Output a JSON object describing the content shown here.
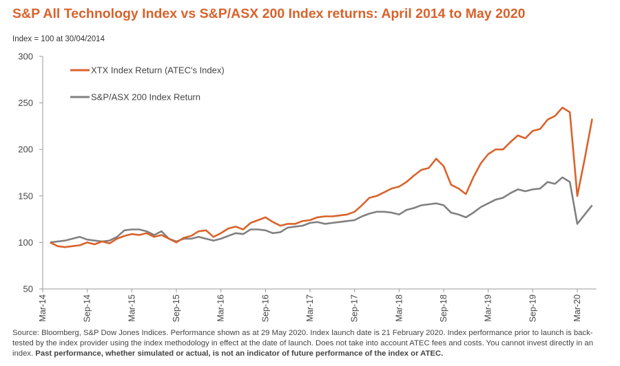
{
  "chart_data": {
    "type": "line",
    "title": "S&P All Technology Index vs S&P/ASX 200 Index returns: April 2014 to May 2020",
    "y_label": "Index = 100 at 30/04/2014",
    "footnote": "Source: Bloomberg, S&P Dow Jones Indices. Performance shown as at 29 May 2020. Index launch date is 21 February 2020. Index performance prior to launch is back-tested by the index provider using the index methodology in effect at the date of launch. Does not take into account ATEC fees and costs. You cannot invest directly in an index.",
    "footnote_bold": "Past performance, whether simulated or actual, is not an indicator of future performance of the index or ATEC.",
    "categories": [
      "Mar-14",
      null,
      null,
      null,
      null,
      null,
      "Sep-14",
      null,
      null,
      null,
      null,
      null,
      "Mar-15",
      null,
      null,
      null,
      null,
      null,
      "Sep-15",
      null,
      null,
      null,
      null,
      null,
      "Mar-16",
      null,
      null,
      null,
      null,
      null,
      "Sep-16",
      null,
      null,
      null,
      null,
      null,
      "Mar-17",
      null,
      null,
      null,
      null,
      null,
      "Sep-17",
      null,
      null,
      null,
      null,
      null,
      "Mar-18",
      null,
      null,
      null,
      null,
      null,
      "Sep-18",
      null,
      null,
      null,
      null,
      null,
      "Mar-19",
      null,
      null,
      null,
      null,
      null,
      "Sep-19",
      null,
      null,
      null,
      null,
      null,
      "Mar-20",
      null,
      null
    ],
    "series": [
      {
        "name": "XTX Index Return (ATEC's Index)",
        "color": "#d9622b",
        "values": [
          null,
          100,
          96,
          95,
          96,
          97,
          100,
          98,
          101,
          99,
          104,
          107,
          109,
          108,
          110,
          106,
          108,
          104,
          100,
          105,
          107,
          112,
          113,
          106,
          110,
          115,
          117,
          114,
          121,
          124,
          127,
          122,
          118,
          120,
          120,
          123,
          124,
          127,
          128,
          128,
          129,
          130,
          133,
          140,
          148,
          150,
          154,
          158,
          160,
          165,
          172,
          178,
          180,
          190,
          182,
          162,
          158,
          152,
          170,
          185,
          195,
          200,
          200,
          208,
          215,
          212,
          220,
          222,
          232,
          236,
          245,
          240,
          150,
          190,
          233
        ]
      },
      {
        "name": "S&P/ASX 200 Index Return",
        "color": "#808080",
        "values": [
          null,
          100,
          101,
          102,
          104,
          106,
          103,
          102,
          101,
          102,
          106,
          113,
          114,
          114,
          112,
          108,
          112,
          104,
          101,
          104,
          104,
          106,
          104,
          102,
          104,
          107,
          110,
          109,
          114,
          114,
          113,
          110,
          111,
          116,
          117,
          118,
          121,
          122,
          120,
          121,
          122,
          123,
          124,
          128,
          131,
          133,
          133,
          132,
          130,
          135,
          137,
          140,
          141,
          142,
          140,
          132,
          130,
          127,
          132,
          138,
          142,
          146,
          148,
          153,
          157,
          155,
          157,
          158,
          165,
          163,
          170,
          165,
          120,
          130,
          140
        ]
      }
    ],
    "ylim": [
      50,
      300
    ],
    "yticks": [
      50,
      100,
      150,
      200,
      250,
      300
    ],
    "grid": false,
    "legend": "top-left"
  }
}
